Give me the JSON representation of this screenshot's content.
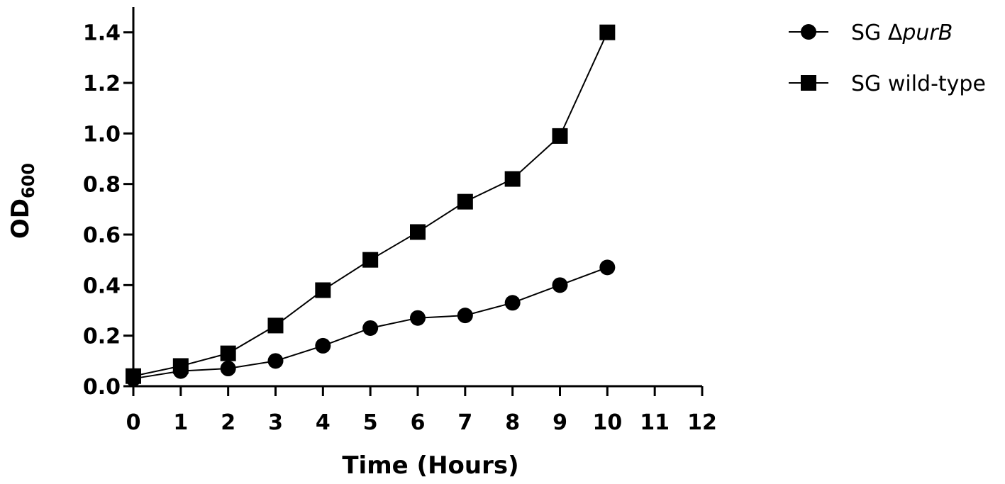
{
  "chart_data": {
    "type": "line",
    "title": "",
    "xlabel": "Time (Hours)",
    "ylabel": {
      "base": "OD",
      "subscript": "600"
    },
    "x": [
      0,
      1,
      2,
      3,
      4,
      5,
      6,
      7,
      8,
      9,
      10
    ],
    "xlim": [
      0,
      12
    ],
    "ylim": [
      0,
      1.5
    ],
    "x_ticks": [
      0,
      1,
      2,
      3,
      4,
      5,
      6,
      7,
      8,
      9,
      10,
      11,
      12
    ],
    "x_tick_labels": [
      "0",
      "1",
      "2",
      "3",
      "4",
      "5",
      "6",
      "7",
      "8",
      "9",
      "10",
      "11",
      "12"
    ],
    "y_ticks": [
      0,
      0.2,
      0.4,
      0.6,
      0.8,
      1.0,
      1.2,
      1.4
    ],
    "y_tick_labels": [
      "0.0",
      "0.2",
      "0.4",
      "0.6",
      "0.8",
      "1.0",
      "1.2",
      "1.4"
    ],
    "grid": false,
    "legend_position": "top-right",
    "series": [
      {
        "name": "SG ΔpurB",
        "name_parts": {
          "prefix": "SG Δ",
          "italic": "purB"
        },
        "marker": "circle",
        "color": "#000000",
        "values": [
          0.03,
          0.06,
          0.07,
          0.1,
          0.16,
          0.23,
          0.27,
          0.28,
          0.33,
          0.4,
          0.47
        ]
      },
      {
        "name": "SG wild-type",
        "marker": "square",
        "color": "#000000",
        "values": [
          0.04,
          0.08,
          0.13,
          0.24,
          0.38,
          0.5,
          0.61,
          0.73,
          0.82,
          0.99,
          1.4
        ]
      }
    ]
  }
}
